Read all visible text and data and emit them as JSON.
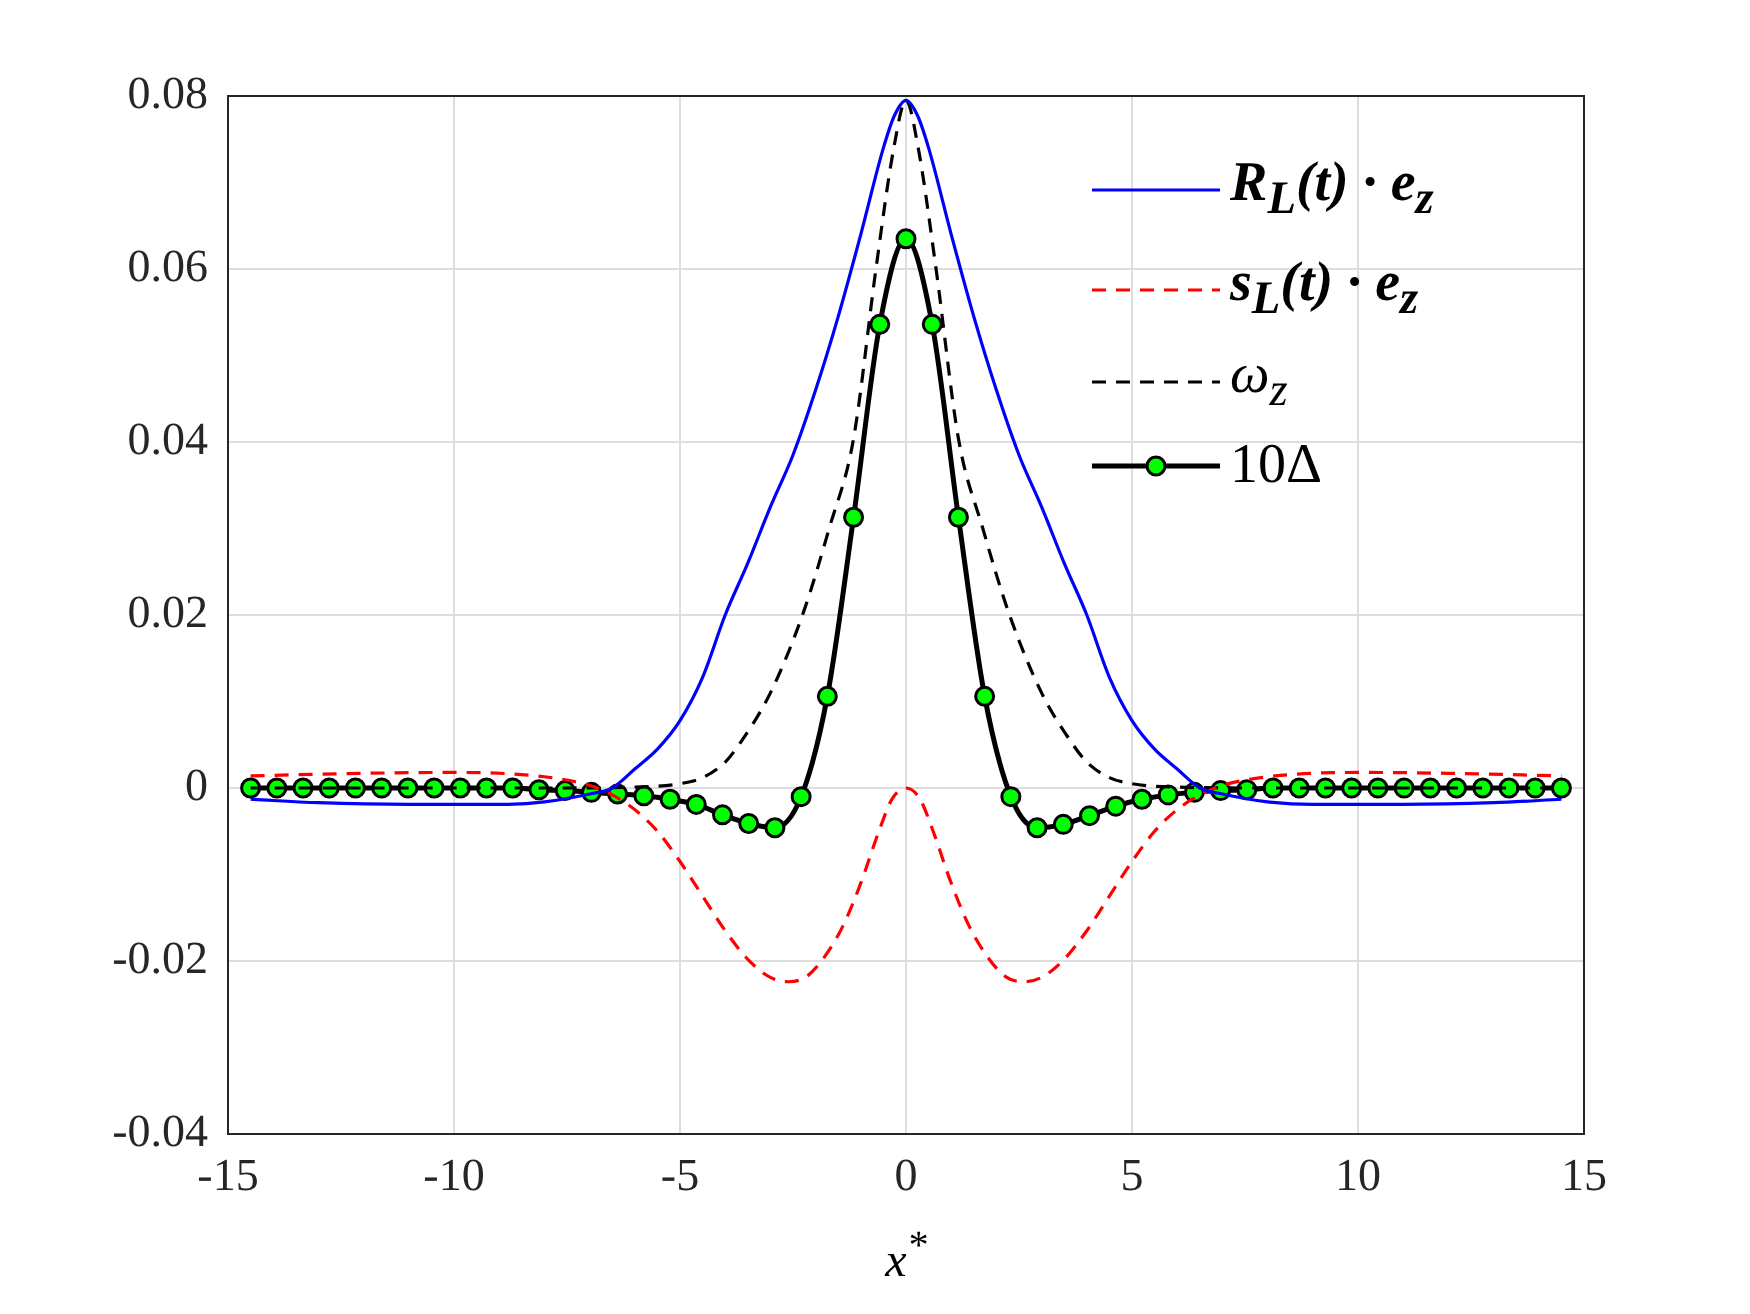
{
  "chart_data": {
    "type": "line",
    "xlabel": "x$^{*}$",
    "xlim": [
      -15,
      15
    ],
    "xticks": [
      -15,
      -10,
      -5,
      0,
      5,
      10,
      15
    ],
    "ylim": [
      -0.04,
      0.08
    ],
    "yticks": [
      -0.04,
      -0.02,
      0,
      0.02,
      0.04,
      0.06,
      0.08
    ],
    "grid": true,
    "legend": "top right",
    "series": [
      {
        "name": "R$_{L}$(t) · e$_{z}$",
        "type": "line",
        "color": "#0000ff",
        "line_style": "solid",
        "marker": "none",
        "x": [
          -14.5,
          -13,
          -11,
          -9,
          -8,
          -7,
          -6.5,
          -6,
          -5.5,
          -5,
          -4.5,
          -4,
          -3.5,
          -3,
          -2.5,
          -2,
          -1.5,
          -1,
          -0.5,
          -0.25,
          0,
          0.25,
          0.5,
          1,
          1.5,
          2,
          2.5,
          3,
          3.5,
          4,
          4.5,
          5,
          5.5,
          6,
          6.5,
          7,
          8,
          9,
          11,
          13,
          14.5
        ],
        "values": [
          -0.0013,
          -0.0017,
          -0.0019,
          -0.0019,
          -0.0016,
          -0.0007,
          0,
          0.0022,
          0.0045,
          0.0078,
          0.0128,
          0.02,
          0.026,
          0.0325,
          0.0385,
          0.046,
          0.0545,
          0.064,
          0.074,
          0.0778,
          0.0795,
          0.0778,
          0.074,
          0.064,
          0.0545,
          0.046,
          0.0385,
          0.0325,
          0.026,
          0.02,
          0.0128,
          0.0078,
          0.0045,
          0.0022,
          0,
          -0.0007,
          -0.0016,
          -0.0019,
          -0.0019,
          -0.0017,
          -0.0013
        ]
      },
      {
        "name": "s$_{L}$(t) · e$_{z}$",
        "type": "line",
        "color": "#ff0000",
        "line_style": "dashed",
        "marker": "none",
        "x": [
          -14.5,
          -12,
          -10,
          -8,
          -7,
          -6.5,
          -6,
          -5.5,
          -5,
          -4.5,
          -4,
          -3.5,
          -3,
          -2.6,
          -2.2,
          -1.8,
          -1.4,
          -1,
          -0.6,
          -0.3,
          0,
          0.3,
          0.6,
          1,
          1.4,
          1.8,
          2.2,
          2.6,
          3,
          3.5,
          4,
          4.5,
          5,
          5.5,
          6,
          6.5,
          7,
          8,
          10,
          12,
          14.5
        ],
        "values": [
          0.0014,
          0.0017,
          0.0018,
          0.0013,
          0.0003,
          -0.0008,
          -0.0025,
          -0.005,
          -0.0085,
          -0.0125,
          -0.0165,
          -0.0198,
          -0.0219,
          -0.0224,
          -0.0218,
          -0.0195,
          -0.016,
          -0.011,
          -0.005,
          -0.0012,
          0,
          -0.0012,
          -0.005,
          -0.011,
          -0.016,
          -0.0195,
          -0.0218,
          -0.0224,
          -0.0219,
          -0.0198,
          -0.0165,
          -0.0125,
          -0.0085,
          -0.005,
          -0.0025,
          -0.0008,
          0.0003,
          0.0013,
          0.0018,
          0.0017,
          0.0014
        ]
      },
      {
        "name": "ω$_{z}$",
        "type": "line",
        "color": "#000000",
        "line_style": "dashed",
        "marker": "none",
        "x": [
          -14.5,
          -8,
          -6,
          -5,
          -4.5,
          -4,
          -3.67,
          -3,
          -2.27,
          -1.7,
          -1.16,
          -0.66,
          -0.27,
          0,
          0.27,
          0.66,
          1.16,
          1.7,
          2.27,
          3,
          3.67,
          4,
          4.5,
          5,
          6,
          8,
          14.5
        ],
        "values": [
          0,
          0,
          0.0001,
          0.0005,
          0.0012,
          0.003,
          0.0052,
          0.011,
          0.0203,
          0.03,
          0.0404,
          0.0602,
          0.074,
          0.0795,
          0.074,
          0.0602,
          0.0404,
          0.03,
          0.0203,
          0.011,
          0.0052,
          0.003,
          0.0012,
          0.0005,
          0.0001,
          0,
          0
        ]
      },
      {
        "name": "10Δ",
        "type": "line",
        "color": "#000000",
        "line_style": "solid",
        "marker": "circle",
        "x": [
          -14.5,
          -13.92,
          -13.34,
          -12.76,
          -12.18,
          -11.6,
          -11.02,
          -10.44,
          -9.86,
          -9.28,
          -8.7,
          -8.12,
          -7.54,
          -6.96,
          -6.38,
          -5.8,
          -5.22,
          -4.64,
          -4.06,
          -3.48,
          -2.9,
          -2.32,
          -1.74,
          -1.16,
          -0.58,
          0,
          0.58,
          1.16,
          1.74,
          2.32,
          2.9,
          3.48,
          4.06,
          4.64,
          5.22,
          5.8,
          6.38,
          6.96,
          7.54,
          8.12,
          8.7,
          9.28,
          9.86,
          10.44,
          11.02,
          11.6,
          12.18,
          12.76,
          13.34,
          13.92,
          14.5
        ],
        "values": [
          0,
          0,
          0,
          0,
          0,
          0,
          0,
          0,
          0,
          0,
          0,
          -0.0002,
          -0.0003,
          -0.0005,
          -0.0007,
          -0.0009,
          -0.0013,
          -0.0019,
          -0.0031,
          -0.0041,
          -0.0046,
          -0.001,
          0.0106,
          0.0313,
          0.0536,
          0.0635,
          0.0536,
          0.0313,
          0.0106,
          -0.001,
          -0.0046,
          -0.0042,
          -0.0032,
          -0.0021,
          -0.0013,
          -0.0008,
          -0.0005,
          -0.0003,
          -0.0002,
          0,
          0,
          0,
          0,
          0,
          0,
          0,
          0,
          0,
          0,
          0,
          0
        ]
      }
    ]
  }
}
